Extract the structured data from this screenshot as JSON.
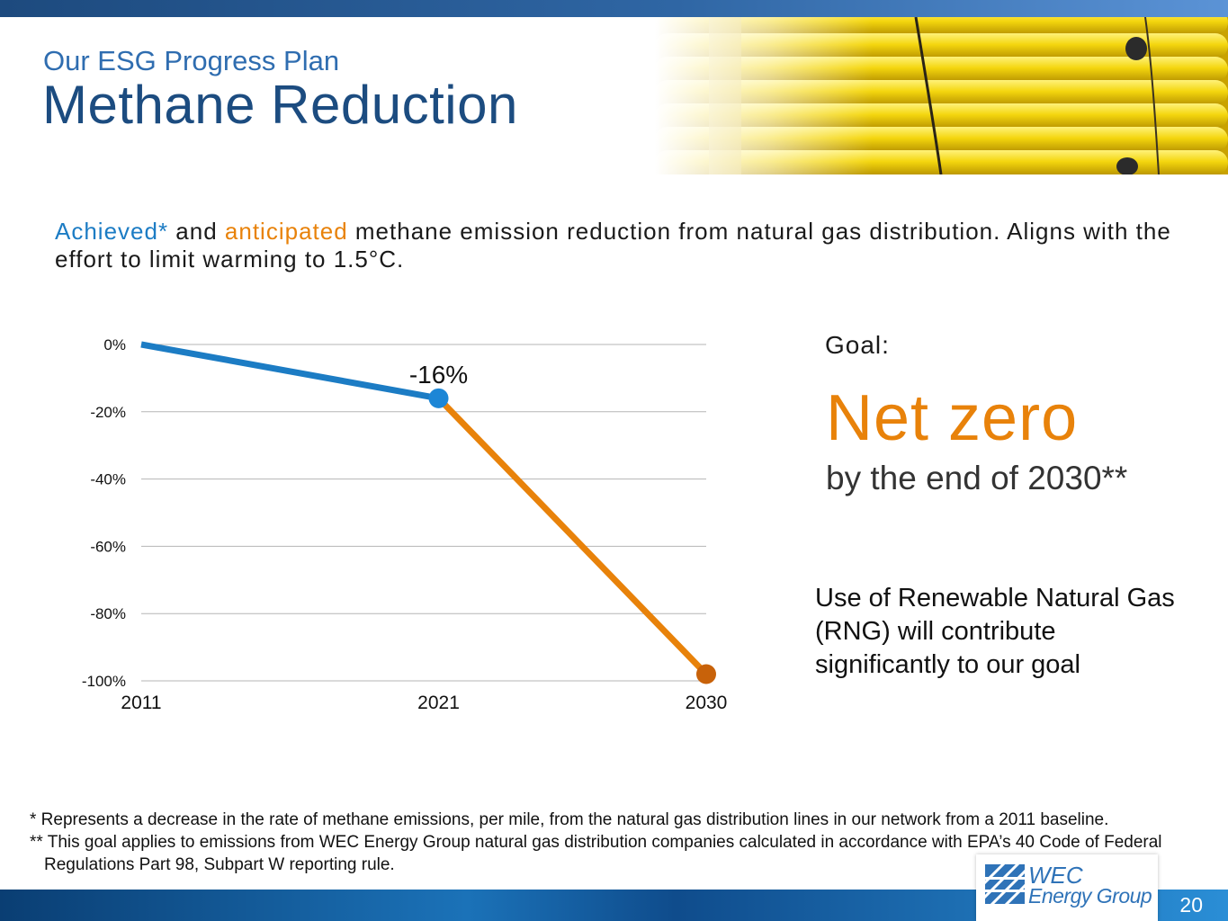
{
  "slide": {
    "eyebrow": "Our ESG Progress Plan",
    "title": "Methane Reduction",
    "page_number": "20"
  },
  "subtitle": {
    "achieved": "Achieved*",
    "and": " and ",
    "anticipated": "anticipated",
    "rest": " methane emission reduction from natural gas distribution. Aligns with the effort to limit warming to 1.5°C."
  },
  "goal": {
    "label": "Goal:",
    "headline": "Net zero",
    "timeline": "by the end of 2030**"
  },
  "rng_note": "Use of Renewable Natural Gas (RNG) will contribute significantly to our goal",
  "footnotes": [
    "* Represents a decrease in the rate of methane emissions, per mile, from the natural gas distribution lines in our network from a 2011 baseline.",
    "** This goal applies to emissions from WEC Energy Group natural gas distribution companies calculated in accordance with EPA’s 40 Code of Federal Regulations Part 98, Subpart W reporting rule."
  ],
  "logo": {
    "line1": "WEC",
    "line2": "Energy Group"
  },
  "colors": {
    "achieved": "#1c7cc4",
    "anticipated": "#e8820a",
    "achieved_marker": "#1c86d6",
    "anticipated_marker": "#c8620a",
    "grid": "#b5b5b5"
  },
  "chart_data": {
    "type": "line",
    "title": "",
    "xlabel": "",
    "ylabel": "",
    "x": [
      2011,
      2021,
      2030
    ],
    "x_tick_labels": [
      "2011",
      "2021",
      "2030"
    ],
    "ylim": [
      -100,
      0
    ],
    "y_ticks": [
      0,
      -20,
      -40,
      -60,
      -80,
      -100
    ],
    "y_tick_labels": [
      "0%",
      "-20%",
      "-40%",
      "-60%",
      "-80%",
      "-100%"
    ],
    "grid": true,
    "series": [
      {
        "name": "Achieved",
        "x": [
          2011,
          2021
        ],
        "values": [
          0,
          -16
        ],
        "color": "#1c7cc4"
      },
      {
        "name": "Anticipated",
        "x": [
          2021,
          2030
        ],
        "values": [
          -16,
          -98
        ],
        "color": "#e8820a"
      }
    ],
    "markers": [
      {
        "x": 2021,
        "value": -16,
        "color": "#1c86d6"
      },
      {
        "x": 2030,
        "value": -98,
        "color": "#c8620a"
      }
    ],
    "annotations": [
      {
        "x": 2021,
        "value": -16,
        "text": "-16%"
      }
    ]
  }
}
